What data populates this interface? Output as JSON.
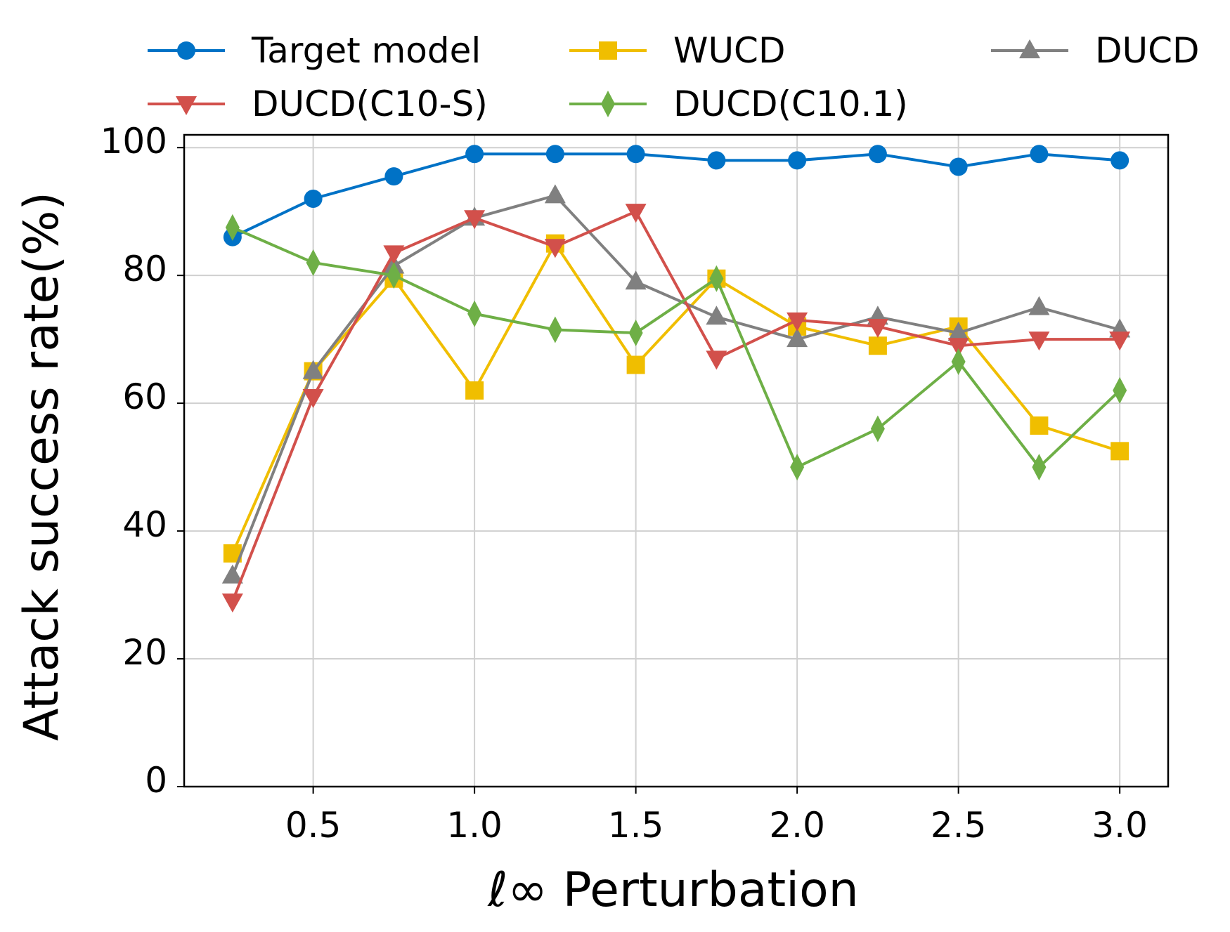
{
  "chart_data": {
    "type": "line",
    "title": "",
    "xlabel": "ℓ∞ Perturbation",
    "ylabel": "Attack success rate(%)",
    "x": [
      0.25,
      0.5,
      0.75,
      1.0,
      1.25,
      1.5,
      1.75,
      2.0,
      2.25,
      2.5,
      2.75,
      3.0
    ],
    "xlim": [
      0.1,
      3.15
    ],
    "ylim": [
      0,
      102
    ],
    "xticks": [
      0.5,
      1.0,
      1.5,
      2.0,
      2.5,
      3.0
    ],
    "xtick_labels": [
      "0.5",
      "1.0",
      "1.5",
      "2.0",
      "2.5",
      "3.0"
    ],
    "yticks": [
      0,
      20,
      40,
      60,
      80,
      100
    ],
    "ytick_labels": [
      "0",
      "20",
      "40",
      "60",
      "80",
      "100"
    ],
    "grid": true,
    "legend_position": "top",
    "series": [
      {
        "name": "Target model",
        "color": "#0072c6",
        "marker": "circle",
        "values": [
          86,
          92,
          95.5,
          99,
          99,
          99,
          98,
          98,
          99,
          97,
          99,
          98
        ]
      },
      {
        "name": "WUCD",
        "color": "#f0be00",
        "marker": "square",
        "values": [
          36.5,
          65,
          79.5,
          62,
          85,
          66,
          79.5,
          72,
          69,
          72,
          56.5,
          52.5
        ]
      },
      {
        "name": "DUCD",
        "color": "#808080",
        "marker": "triangle-up",
        "values": [
          33,
          65,
          81.5,
          89,
          92.5,
          79,
          73.5,
          70,
          73.5,
          71,
          75,
          71.5
        ]
      },
      {
        "name": "DUCD(C10-S)",
        "color": "#d2504b",
        "marker": "triangle-down",
        "values": [
          29,
          61,
          83.5,
          89,
          84.5,
          90,
          67,
          73,
          72,
          69,
          70,
          70
        ]
      },
      {
        "name": "DUCD(C10.1)",
        "color": "#6eaf46",
        "marker": "diamond",
        "values": [
          87.5,
          82,
          80,
          74,
          71.5,
          71,
          79.5,
          50,
          56,
          66.5,
          50,
          62
        ]
      }
    ]
  }
}
